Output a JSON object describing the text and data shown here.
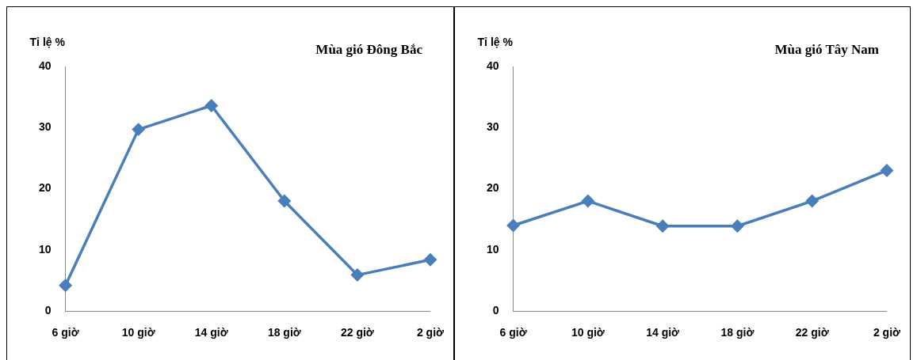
{
  "chart_data": [
    {
      "type": "line",
      "title": "Mùa gió Đông Bắc",
      "ylabel": "Tỉ lệ %",
      "categories": [
        "6 giờ",
        "10 giờ",
        "14 giờ",
        "18 giờ",
        "22 giờ",
        "2 giờ"
      ],
      "series": [
        {
          "color": "#4a7ebb",
          "values": [
            4.2,
            29.7,
            33.6,
            18,
            5.9,
            8.4
          ]
        }
      ],
      "ylim": [
        0,
        40
      ],
      "yticks": [
        0,
        10,
        20,
        30,
        40
      ],
      "grid": false,
      "marker": "diamond",
      "line_style": "solid"
    },
    {
      "type": "line",
      "title": "Mùa gió Tây Nam",
      "ylabel": "Tỉ lệ %",
      "categories": [
        "6 giờ",
        "10 giờ",
        "14 giờ",
        "18 giờ",
        "22 giờ",
        "2 giờ"
      ],
      "series": [
        {
          "color": "#4a7ebb",
          "values": [
            14,
            18,
            13.9,
            13.9,
            18,
            23
          ]
        }
      ],
      "ylim": [
        0,
        40
      ],
      "yticks": [
        0,
        10,
        20,
        30,
        40
      ],
      "grid": false,
      "marker": "diamond",
      "line_style": "solid"
    }
  ]
}
